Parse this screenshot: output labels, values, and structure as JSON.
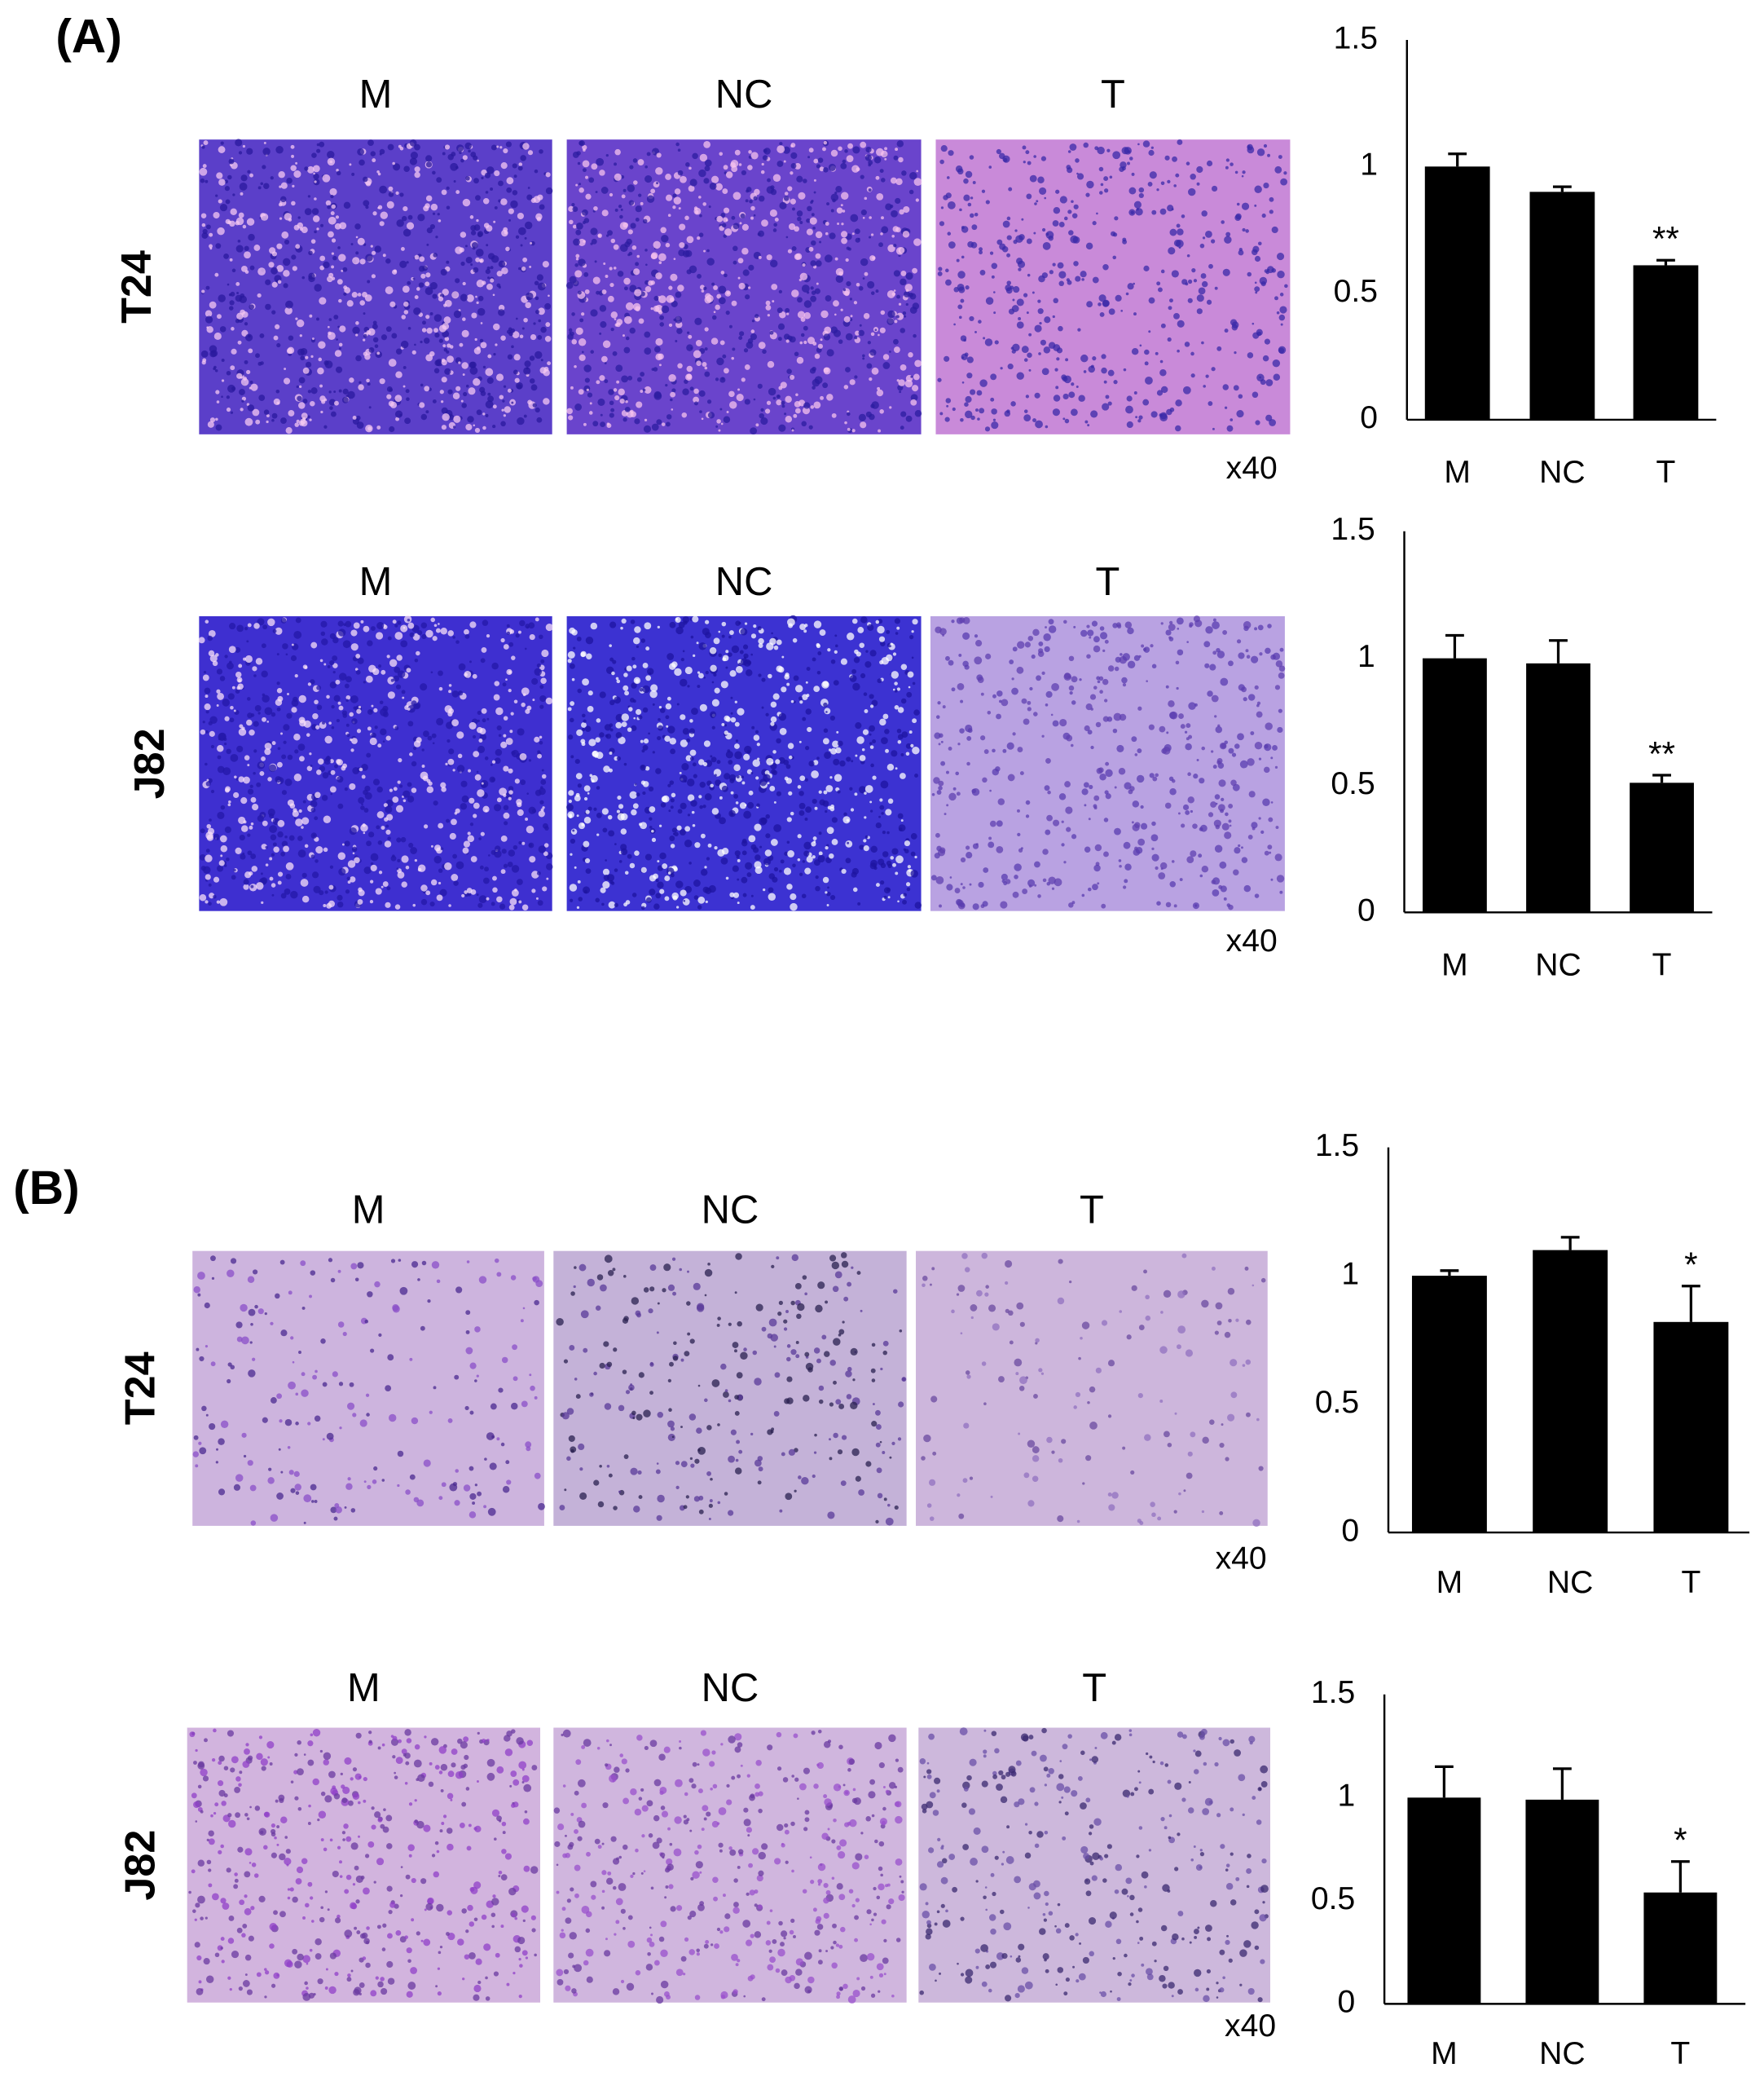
{
  "panels": [
    {
      "label": "(A)",
      "rows": [
        {
          "cell_line": "T24",
          "columns": [
            "M",
            "NC",
            "T"
          ],
          "magnification": "x40"
        },
        {
          "cell_line": "J82",
          "columns": [
            "M",
            "NC",
            "T"
          ],
          "magnification": "x40"
        }
      ]
    },
    {
      "label": "(B)",
      "rows": [
        {
          "cell_line": "T24",
          "columns": [
            "M",
            "NC",
            "T"
          ],
          "magnification": "x40"
        },
        {
          "cell_line": "J82",
          "columns": [
            "M",
            "NC",
            "T"
          ],
          "magnification": "x40"
        }
      ]
    }
  ],
  "chart_data": [
    {
      "type": "bar",
      "categories": [
        "M",
        "NC",
        "T"
      ],
      "values": [
        1.0,
        0.9,
        0.61
      ],
      "errors": [
        0.05,
        0.02,
        0.02
      ],
      "color": "#000000",
      "ylim": [
        0,
        1.5
      ],
      "yticks": [
        0,
        0.5,
        1,
        1.5
      ],
      "grid": false,
      "annotations": [
        {
          "category": "T",
          "text": "**"
        }
      ]
    },
    {
      "type": "bar",
      "categories": [
        "M",
        "NC",
        "T"
      ],
      "values": [
        1.0,
        0.98,
        0.51
      ],
      "errors": [
        0.09,
        0.09,
        0.03
      ],
      "color": "#000000",
      "ylim": [
        0,
        1.5
      ],
      "yticks": [
        0,
        0.5,
        1,
        1.5
      ],
      "grid": false,
      "annotations": [
        {
          "category": "T",
          "text": "**"
        }
      ]
    },
    {
      "type": "bar",
      "categories": [
        "M",
        "NC",
        "T"
      ],
      "values": [
        1.0,
        1.1,
        0.82
      ],
      "errors": [
        0.02,
        0.05,
        0.14
      ],
      "color": "#000000",
      "ylim": [
        0,
        1.5
      ],
      "yticks": [
        0,
        0.5,
        1,
        1.5
      ],
      "grid": false,
      "annotations": [
        {
          "category": "T",
          "text": "*"
        }
      ]
    },
    {
      "type": "bar",
      "categories": [
        "M",
        "NC",
        "T"
      ],
      "values": [
        1.0,
        0.99,
        0.54
      ],
      "errors": [
        0.15,
        0.15,
        0.15
      ],
      "color": "#000000",
      "ylim": [
        0,
        1.5
      ],
      "yticks": [
        0,
        0.5,
        1,
        1.5
      ],
      "grid": false,
      "annotations": [
        {
          "category": "T",
          "text": "*"
        }
      ]
    }
  ]
}
